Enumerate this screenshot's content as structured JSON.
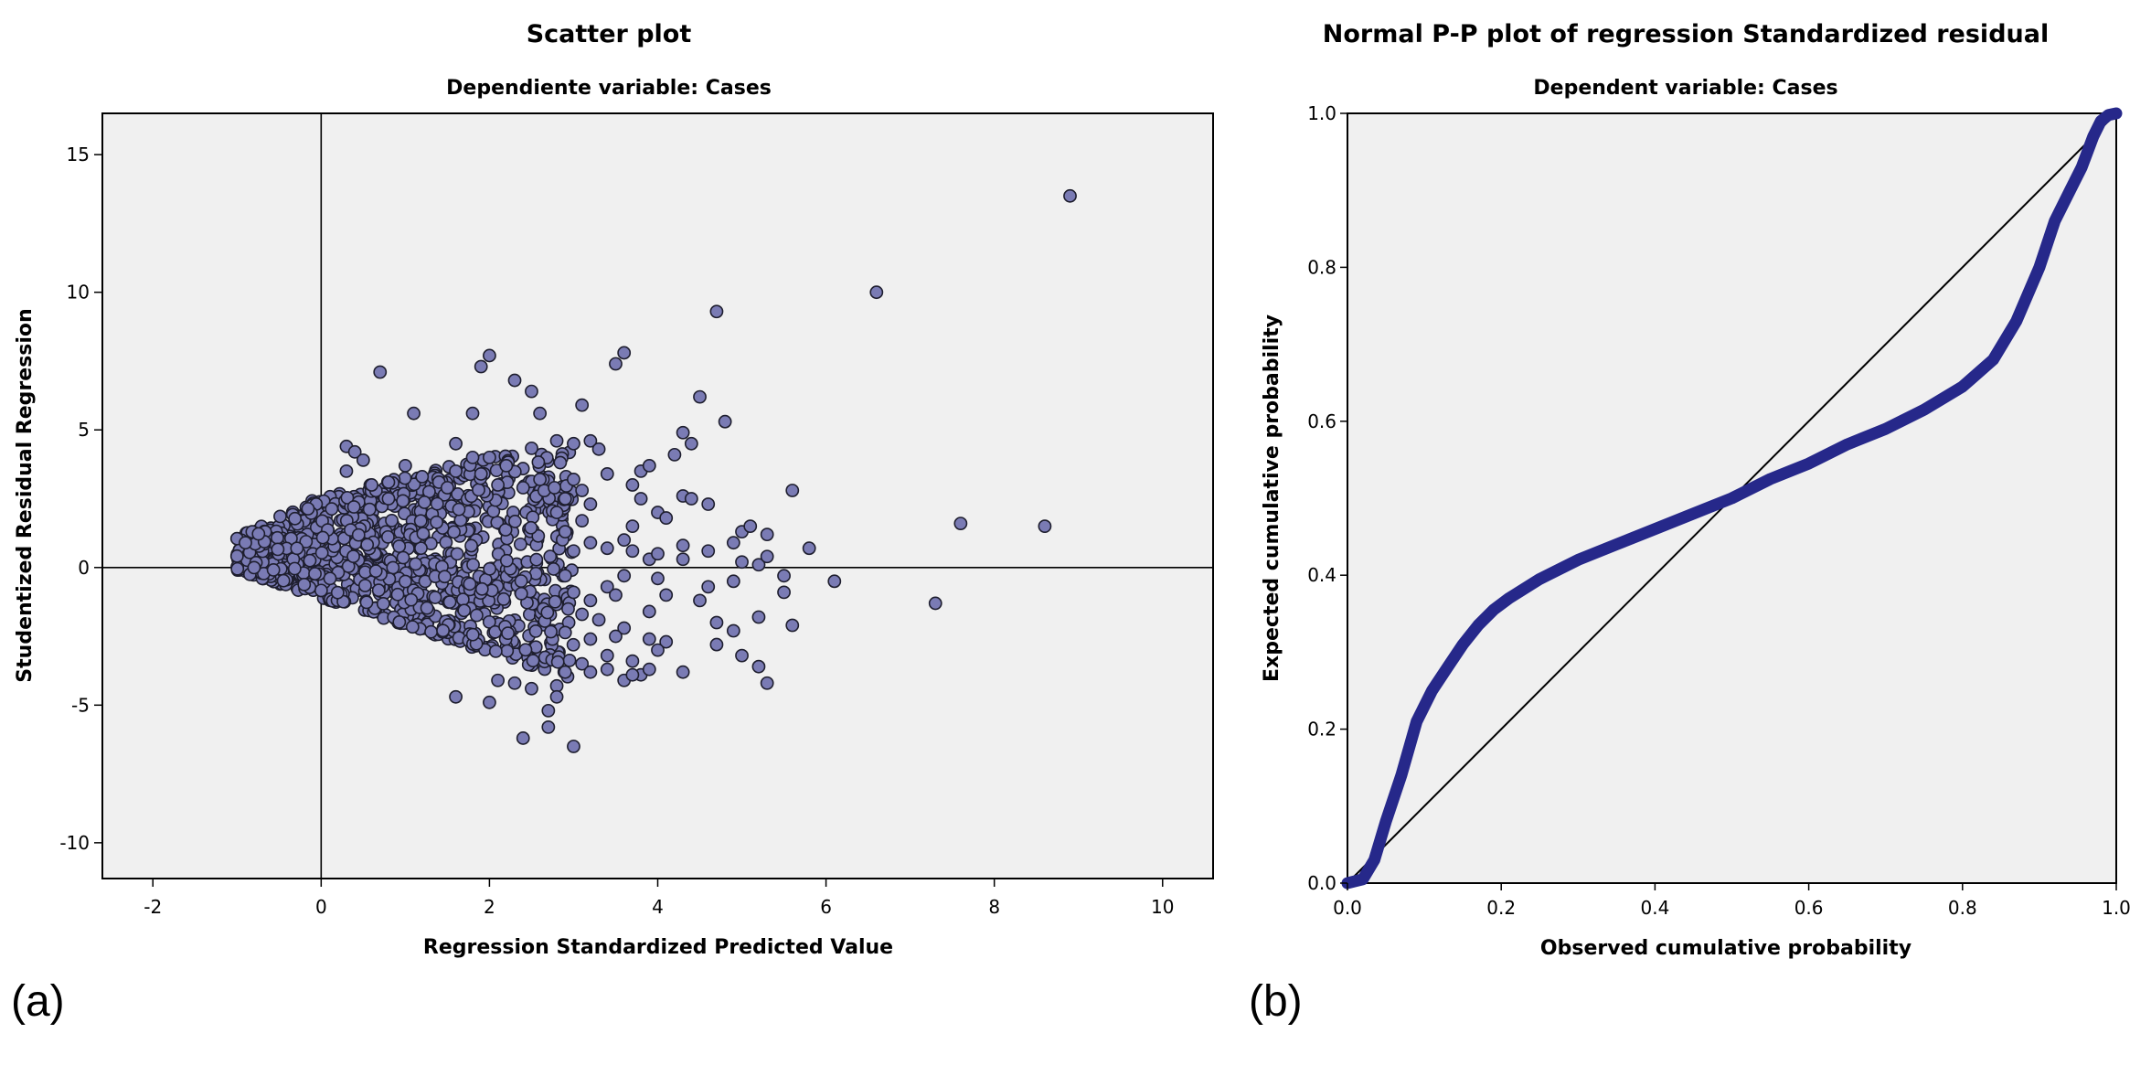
{
  "panel_a_label": "(a)",
  "panel_b_label": "(b)",
  "colors": {
    "plot_bg": "#f0f0f0",
    "scatter_fill": "#7a7bb4",
    "scatter_stroke": "#1e1e2e",
    "pp_curve": "#26288a",
    "axis": "#000000"
  },
  "chart_data": [
    {
      "type": "scatter",
      "title": "Scatter plot",
      "subtitle": "Dependiente variable: Cases",
      "xlabel": "Regression Standardized Predicted Value",
      "ylabel": "Studentized Residual Regression",
      "xlim": [
        -2.6,
        10.6
      ],
      "ylim": [
        -11.3,
        16.5
      ],
      "xticks": [
        -2,
        0,
        2,
        4,
        6,
        8,
        10
      ],
      "yticks": [
        -10,
        -5,
        0,
        5,
        10,
        15
      ],
      "reference_lines": {
        "x": 0,
        "y": 0
      },
      "dense_cluster_note": "approx. 900 overlapping points with x from -1 to 3 and y from about -4 to 4.5, bounded below by y = -x - 1.1",
      "points": [
        [
          -1.0,
          1.05
        ],
        [
          -0.9,
          0.9
        ],
        [
          0.3,
          4.4
        ],
        [
          0.4,
          4.2
        ],
        [
          0.7,
          7.1
        ],
        [
          1.1,
          5.6
        ],
        [
          1.9,
          7.3
        ],
        [
          2.0,
          7.7
        ],
        [
          2.3,
          6.8
        ],
        [
          2.5,
          6.4
        ],
        [
          1.8,
          5.6
        ],
        [
          2.6,
          5.6
        ],
        [
          1.6,
          4.5
        ],
        [
          3.1,
          5.9
        ],
        [
          2.8,
          4.6
        ],
        [
          3.5,
          7.4
        ],
        [
          3.6,
          7.8
        ],
        [
          4.7,
          9.3
        ],
        [
          6.6,
          10.0
        ],
        [
          8.9,
          13.5
        ],
        [
          4.5,
          6.2
        ],
        [
          4.8,
          5.3
        ],
        [
          4.3,
          4.9
        ],
        [
          4.4,
          4.5
        ],
        [
          4.2,
          4.1
        ],
        [
          3.2,
          4.6
        ],
        [
          3.3,
          4.3
        ],
        [
          3.0,
          4.5
        ],
        [
          3.4,
          3.4
        ],
        [
          3.8,
          3.5
        ],
        [
          3.9,
          3.7
        ],
        [
          3.7,
          3.0
        ],
        [
          3.8,
          2.5
        ],
        [
          4.0,
          2.0
        ],
        [
          4.3,
          2.6
        ],
        [
          4.4,
          2.5
        ],
        [
          4.6,
          2.3
        ],
        [
          4.1,
          1.8
        ],
        [
          3.7,
          1.5
        ],
        [
          4.3,
          0.8
        ],
        [
          4.3,
          0.3
        ],
        [
          4.6,
          0.6
        ],
        [
          4.9,
          0.9
        ],
        [
          5.0,
          1.3
        ],
        [
          5.1,
          1.5
        ],
        [
          5.3,
          1.2
        ],
        [
          5.6,
          2.8
        ],
        [
          5.8,
          0.7
        ],
        [
          5.0,
          0.2
        ],
        [
          5.2,
          0.1
        ],
        [
          5.3,
          0.4
        ],
        [
          5.5,
          -0.3
        ],
        [
          6.1,
          -0.5
        ],
        [
          5.5,
          -0.9
        ],
        [
          4.6,
          -0.7
        ],
        [
          4.9,
          -0.5
        ],
        [
          4.1,
          -1.0
        ],
        [
          4.0,
          -0.4
        ],
        [
          4.5,
          -1.2
        ],
        [
          5.2,
          -1.8
        ],
        [
          5.6,
          -2.1
        ],
        [
          4.7,
          -2.0
        ],
        [
          4.9,
          -2.3
        ],
        [
          4.7,
          -2.8
        ],
        [
          5.0,
          -3.2
        ],
        [
          5.2,
          -3.6
        ],
        [
          5.3,
          -4.2
        ],
        [
          4.1,
          -2.7
        ],
        [
          4.3,
          -3.8
        ],
        [
          4.0,
          -3.0
        ],
        [
          3.7,
          -3.4
        ],
        [
          3.9,
          -2.6
        ],
        [
          3.6,
          -2.2
        ],
        [
          3.4,
          -3.2
        ],
        [
          3.5,
          -2.5
        ],
        [
          3.3,
          -1.9
        ],
        [
          3.2,
          -1.2
        ],
        [
          3.4,
          -0.7
        ],
        [
          3.5,
          -1.0
        ],
        [
          3.6,
          -0.3
        ],
        [
          3.9,
          -1.6
        ],
        [
          3.1,
          -3.5
        ],
        [
          2.9,
          -3.8
        ],
        [
          3.2,
          -3.8
        ],
        [
          3.4,
          -3.7
        ],
        [
          3.6,
          -4.1
        ],
        [
          3.8,
          -3.9
        ],
        [
          3.9,
          -3.7
        ],
        [
          3.7,
          -3.9
        ],
        [
          2.8,
          -4.3
        ],
        [
          2.8,
          -4.7
        ],
        [
          2.7,
          -5.2
        ],
        [
          2.7,
          -5.8
        ],
        [
          2.5,
          -4.4
        ],
        [
          2.3,
          -4.2
        ],
        [
          2.4,
          -6.2
        ],
        [
          3.0,
          -6.5
        ],
        [
          2.0,
          -4.9
        ],
        [
          1.6,
          -4.7
        ],
        [
          2.1,
          -4.1
        ],
        [
          7.6,
          1.6
        ],
        [
          8.6,
          1.5
        ],
        [
          7.3,
          -1.3
        ],
        [
          3.4,
          0.7
        ],
        [
          3.6,
          1.0
        ],
        [
          3.7,
          0.6
        ],
        [
          3.9,
          0.3
        ],
        [
          4.0,
          0.5
        ],
        [
          3.2,
          0.9
        ],
        [
          3.1,
          1.7
        ],
        [
          3.2,
          2.3
        ],
        [
          3.1,
          2.8
        ],
        [
          3.0,
          3.2
        ],
        [
          2.9,
          2.5
        ],
        [
          2.8,
          2.0
        ],
        [
          2.9,
          1.3
        ],
        [
          3.0,
          0.6
        ],
        [
          2.9,
          -0.3
        ],
        [
          3.0,
          -0.9
        ],
        [
          3.1,
          -1.7
        ],
        [
          3.2,
          -2.6
        ],
        [
          2.6,
          3.2
        ],
        [
          2.4,
          2.9
        ],
        [
          2.2,
          3.7
        ],
        [
          2.1,
          3.0
        ],
        [
          2.0,
          4.0
        ],
        [
          1.9,
          3.4
        ],
        [
          1.8,
          4.0
        ],
        [
          1.6,
          3.5
        ],
        [
          1.4,
          3.1
        ],
        [
          1.5,
          2.9
        ],
        [
          1.2,
          3.3
        ],
        [
          1.0,
          3.7
        ],
        [
          0.8,
          3.1
        ],
        [
          0.6,
          3.0
        ],
        [
          0.3,
          3.5
        ],
        [
          0.5,
          3.9
        ],
        [
          0.8,
          2.5
        ]
      ]
    },
    {
      "type": "line",
      "title": "Normal P-P plot of regression Standardized residual",
      "subtitle": "Dependent variable: Cases",
      "xlabel": "Observed cumulative probability",
      "ylabel": "Expected cumulative probability",
      "xlim": [
        0,
        1
      ],
      "ylim": [
        0,
        1
      ],
      "xticks": [
        "0.0",
        "0.2",
        "0.4",
        "0.6",
        "0.8",
        "1.0"
      ],
      "yticks": [
        "0.0",
        "0.2",
        "0.4",
        "0.6",
        "0.8",
        "1.0"
      ],
      "reference_line": {
        "from": [
          0,
          0
        ],
        "to": [
          1,
          1
        ]
      },
      "series": [
        {
          "name": "P-P curve",
          "x": [
            0,
            0.02,
            0.035,
            0.05,
            0.07,
            0.09,
            0.11,
            0.13,
            0.15,
            0.17,
            0.19,
            0.21,
            0.25,
            0.3,
            0.35,
            0.4,
            0.45,
            0.5,
            0.55,
            0.6,
            0.65,
            0.7,
            0.75,
            0.8,
            0.84,
            0.87,
            0.9,
            0.92,
            0.94,
            0.955,
            0.97,
            0.98,
            0.99,
            1.0
          ],
          "y": [
            0,
            0.005,
            0.03,
            0.08,
            0.14,
            0.21,
            0.25,
            0.28,
            0.31,
            0.335,
            0.355,
            0.37,
            0.395,
            0.42,
            0.44,
            0.46,
            0.48,
            0.5,
            0.525,
            0.545,
            0.57,
            0.59,
            0.615,
            0.645,
            0.68,
            0.73,
            0.8,
            0.86,
            0.9,
            0.93,
            0.97,
            0.99,
            0.998,
            1.0
          ]
        }
      ]
    }
  ]
}
